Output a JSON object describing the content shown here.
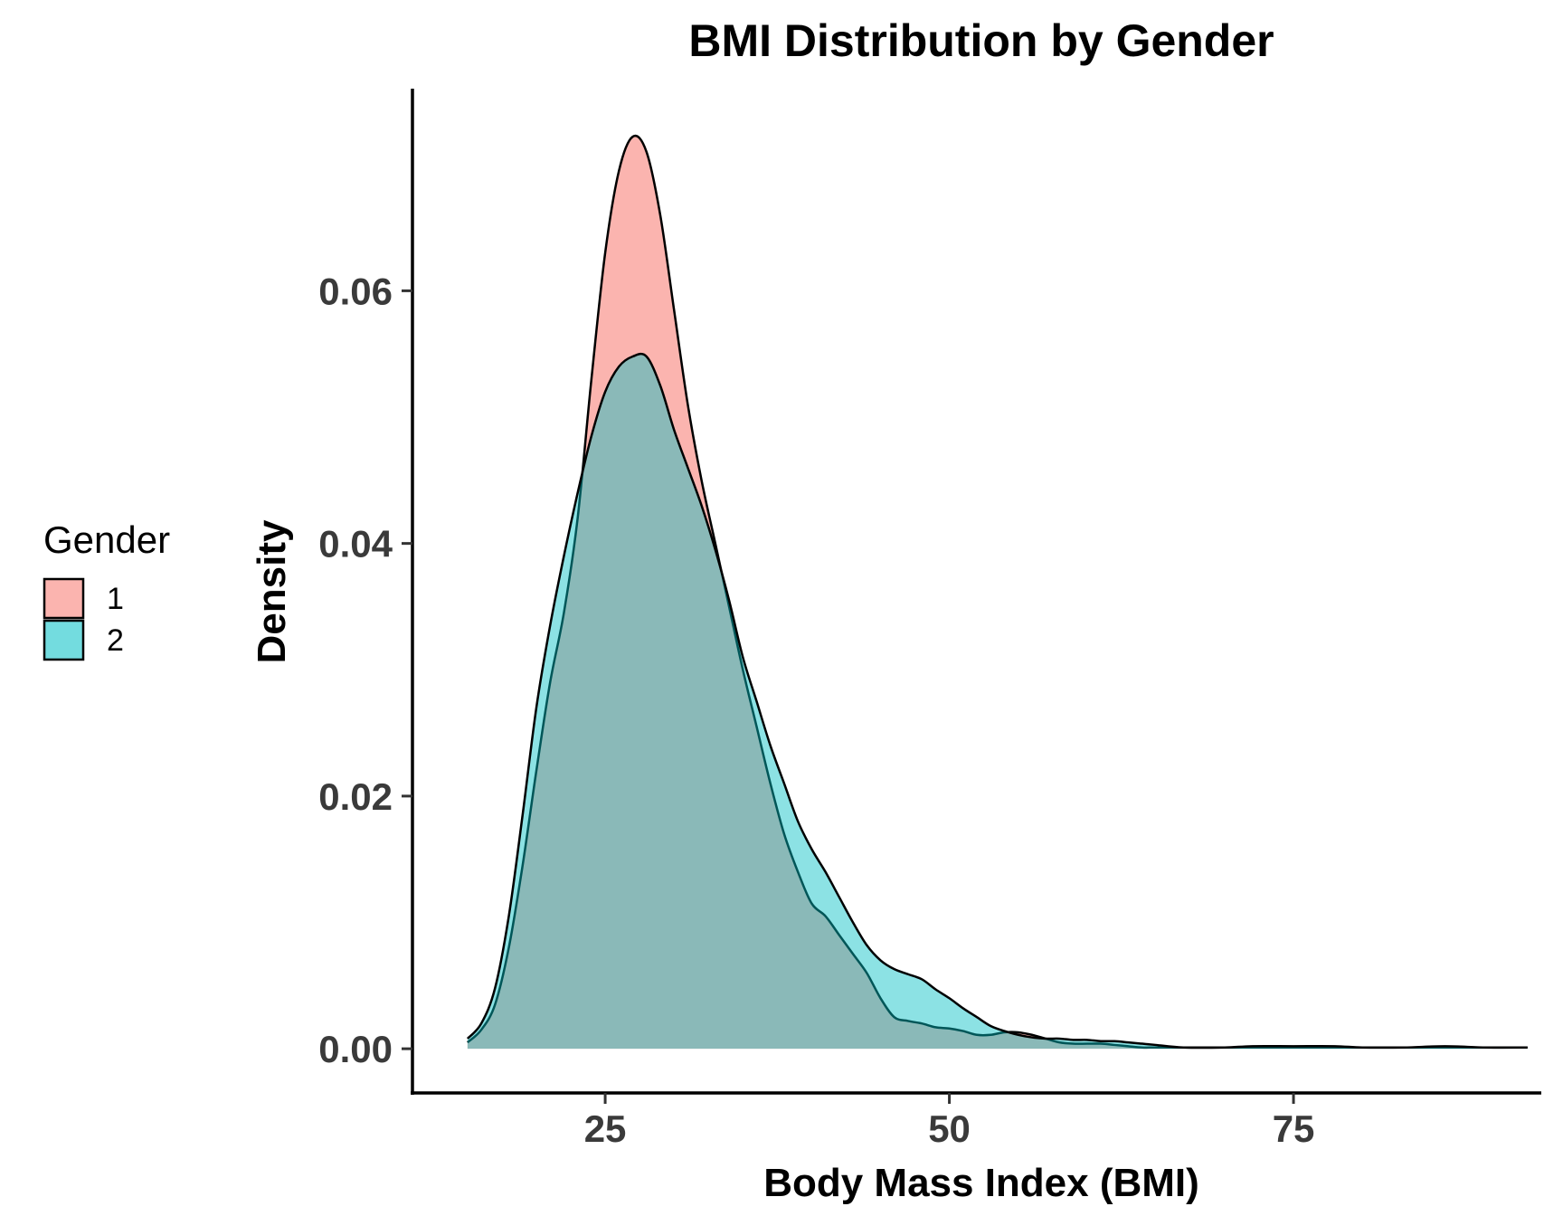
{
  "chart_data": {
    "type": "area",
    "subtype": "density",
    "title": "BMI Distribution by Gender",
    "xlabel": "Body Mass Index (BMI)",
    "ylabel": "Density",
    "xlim": [
      11,
      93
    ],
    "ylim": [
      -0.0035,
      0.076
    ],
    "x_ticks": [
      25,
      50,
      75
    ],
    "x_tick_labels": [
      "25",
      "50",
      "75"
    ],
    "y_ticks": [
      0.0,
      0.02,
      0.04,
      0.06
    ],
    "y_tick_labels": [
      "0.00",
      "0.02",
      "0.04",
      "0.06"
    ],
    "grid": false,
    "legend": {
      "title": "Gender",
      "position": "left"
    },
    "series": [
      {
        "name": "1",
        "color": "#F8766D",
        "fill_opacity": 0.55,
        "points": [
          [
            15.0,
            0.0005
          ],
          [
            16.0,
            0.0015
          ],
          [
            17.0,
            0.0035
          ],
          [
            18.0,
            0.008
          ],
          [
            19.0,
            0.0145
          ],
          [
            20.0,
            0.022
          ],
          [
            21.0,
            0.029
          ],
          [
            22.0,
            0.0345
          ],
          [
            23.0,
            0.042
          ],
          [
            24.0,
            0.053
          ],
          [
            25.0,
            0.063
          ],
          [
            26.0,
            0.0695
          ],
          [
            27.0,
            0.0722
          ],
          [
            28.0,
            0.071
          ],
          [
            29.0,
            0.066
          ],
          [
            30.0,
            0.0585
          ],
          [
            31.0,
            0.051
          ],
          [
            32.0,
            0.045
          ],
          [
            33.0,
            0.04
          ],
          [
            34.0,
            0.035
          ],
          [
            35.0,
            0.03
          ],
          [
            36.0,
            0.0255
          ],
          [
            37.0,
            0.021
          ],
          [
            38.0,
            0.017
          ],
          [
            39.0,
            0.014
          ],
          [
            40.0,
            0.0115
          ],
          [
            41.0,
            0.0105
          ],
          [
            42.0,
            0.009
          ],
          [
            43.0,
            0.0075
          ],
          [
            44.0,
            0.006
          ],
          [
            45.0,
            0.004
          ],
          [
            46.0,
            0.0025
          ],
          [
            47.0,
            0.0022
          ],
          [
            48.0,
            0.002
          ],
          [
            49.0,
            0.0017
          ],
          [
            50.0,
            0.0016
          ],
          [
            51.0,
            0.0014
          ],
          [
            52.0,
            0.0011
          ],
          [
            53.0,
            0.0011
          ],
          [
            54.0,
            0.0013
          ],
          [
            55.0,
            0.0013
          ],
          [
            56.0,
            0.0011
          ],
          [
            57.0,
            0.0008
          ],
          [
            58.0,
            0.0005
          ],
          [
            59.0,
            0.0004
          ],
          [
            60.0,
            0.0004
          ],
          [
            61.0,
            0.0004
          ],
          [
            62.0,
            0.0003
          ],
          [
            63.0,
            0.0002
          ],
          [
            64.0,
            0.0001
          ],
          [
            65.0,
            0.0001
          ],
          [
            67.0,
            0.0001
          ],
          [
            70.0,
            0.0001
          ],
          [
            72.0,
            0.0001
          ],
          [
            75.0,
            0.0001
          ],
          [
            80.0,
            0.0001
          ],
          [
            85.0,
            0.0001
          ],
          [
            88.0,
            0.0001
          ],
          [
            92.0,
            0.0001
          ]
        ]
      },
      {
        "name": "2",
        "color": "#00BFC4",
        "fill_opacity": 0.45,
        "points": [
          [
            15.0,
            0.0008
          ],
          [
            16.0,
            0.002
          ],
          [
            17.0,
            0.0048
          ],
          [
            18.0,
            0.0105
          ],
          [
            19.0,
            0.0185
          ],
          [
            20.0,
            0.027
          ],
          [
            21.0,
            0.0335
          ],
          [
            22.0,
            0.039
          ],
          [
            23.0,
            0.044
          ],
          [
            24.0,
            0.0485
          ],
          [
            25.0,
            0.052
          ],
          [
            26.0,
            0.054
          ],
          [
            27.0,
            0.0548
          ],
          [
            28.0,
            0.0548
          ],
          [
            29.0,
            0.0525
          ],
          [
            30.0,
            0.049
          ],
          [
            31.0,
            0.046
          ],
          [
            32.0,
            0.043
          ],
          [
            33.0,
            0.0395
          ],
          [
            34.0,
            0.0355
          ],
          [
            35.0,
            0.031
          ],
          [
            36.0,
            0.0275
          ],
          [
            37.0,
            0.024
          ],
          [
            38.0,
            0.021
          ],
          [
            39.0,
            0.018
          ],
          [
            40.0,
            0.0158
          ],
          [
            41.0,
            0.014
          ],
          [
            42.0,
            0.012
          ],
          [
            43.0,
            0.01
          ],
          [
            44.0,
            0.0082
          ],
          [
            45.0,
            0.007
          ],
          [
            46.0,
            0.0063
          ],
          [
            47.0,
            0.0059
          ],
          [
            48.0,
            0.0055
          ],
          [
            49.0,
            0.0047
          ],
          [
            50.0,
            0.004
          ],
          [
            51.0,
            0.0032
          ],
          [
            52.0,
            0.0025
          ],
          [
            53.0,
            0.0018
          ],
          [
            54.0,
            0.0014
          ],
          [
            55.0,
            0.0011
          ],
          [
            56.0,
            0.0009
          ],
          [
            57.0,
            0.0008
          ],
          [
            58.0,
            0.0008
          ],
          [
            59.0,
            0.0007
          ],
          [
            60.0,
            0.0007
          ],
          [
            61.0,
            0.0006
          ],
          [
            62.0,
            0.0006
          ],
          [
            63.0,
            0.0005
          ],
          [
            64.0,
            0.0004
          ],
          [
            65.0,
            0.0003
          ],
          [
            67.0,
            0.0001
          ],
          [
            70.0,
            0.0001
          ],
          [
            72.0,
            0.0002
          ],
          [
            75.0,
            0.0002
          ],
          [
            78.0,
            0.0002
          ],
          [
            80.0,
            0.0001
          ],
          [
            83.0,
            0.0001
          ],
          [
            86.0,
            0.0002
          ],
          [
            89.0,
            0.0001
          ],
          [
            92.0,
            0.0001
          ]
        ]
      }
    ]
  }
}
